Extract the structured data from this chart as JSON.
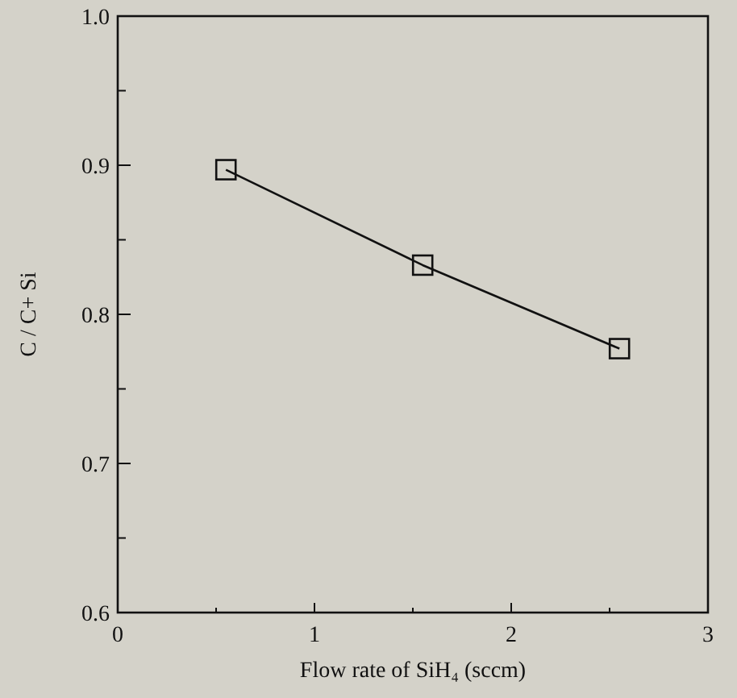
{
  "chart_data": {
    "type": "line",
    "xlabel": "Flow rate of SiH₄ (sccm)",
    "ylabel": "C / C+ Si",
    "x": [
      0.55,
      1.55,
      2.55
    ],
    "series": [
      {
        "color": "#111111",
        "values": [
          0.897,
          0.833,
          0.777
        ]
      }
    ],
    "marker": "square",
    "line_style": "solid",
    "grid": false,
    "xlim": [
      0,
      3
    ],
    "xticks": [
      0,
      {
        "value": 0.5,
        "label": null
      },
      1,
      {
        "value": 1.5,
        "label": null
      },
      2,
      {
        "value": 2.5,
        "label": null
      },
      3
    ],
    "ylim": [
      0.6,
      1.0
    ],
    "yticks": [
      "0.6",
      {
        "value": 0.65,
        "label": null
      },
      0.7,
      {
        "value": 0.75,
        "label": null
      },
      0.8,
      {
        "value": 0.85,
        "label": null
      },
      0.9,
      {
        "value": 0.95,
        "label": null
      },
      "1.0"
    ]
  }
}
